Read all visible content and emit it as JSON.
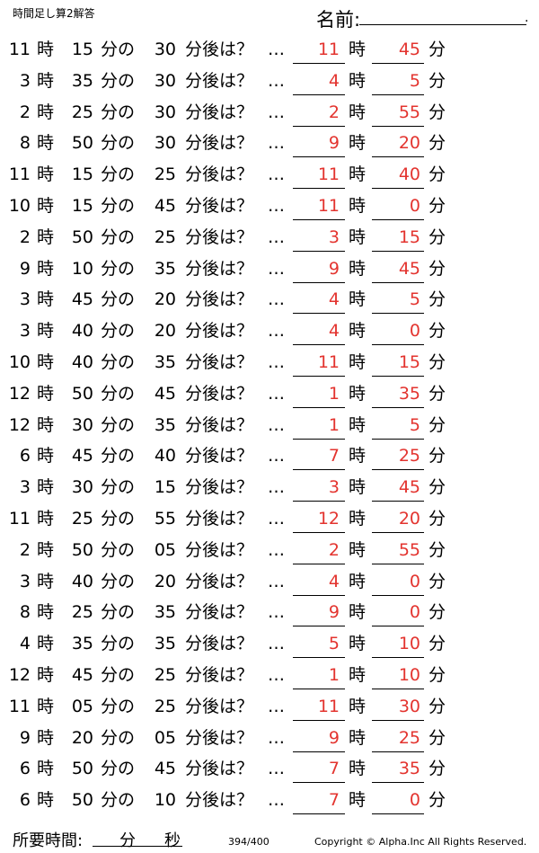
{
  "header": {
    "title": "時間足し算2解答",
    "name_label": "名前:",
    "name_dot": "."
  },
  "labels": {
    "hour": "時",
    "minute_of": "分の",
    "minutes_after": "分後は？",
    "dots": "…",
    "minute": "分"
  },
  "rows": [
    {
      "h": "11",
      "m": "15",
      "add": "30",
      "ah": "11",
      "am": "45"
    },
    {
      "h": "3",
      "m": "35",
      "add": "30",
      "ah": "4",
      "am": "5"
    },
    {
      "h": "2",
      "m": "25",
      "add": "30",
      "ah": "2",
      "am": "55"
    },
    {
      "h": "8",
      "m": "50",
      "add": "30",
      "ah": "9",
      "am": "20"
    },
    {
      "h": "11",
      "m": "15",
      "add": "25",
      "ah": "11",
      "am": "40"
    },
    {
      "h": "10",
      "m": "15",
      "add": "45",
      "ah": "11",
      "am": "0"
    },
    {
      "h": "2",
      "m": "50",
      "add": "25",
      "ah": "3",
      "am": "15"
    },
    {
      "h": "9",
      "m": "10",
      "add": "35",
      "ah": "9",
      "am": "45"
    },
    {
      "h": "3",
      "m": "45",
      "add": "20",
      "ah": "4",
      "am": "5"
    },
    {
      "h": "3",
      "m": "40",
      "add": "20",
      "ah": "4",
      "am": "0"
    },
    {
      "h": "10",
      "m": "40",
      "add": "35",
      "ah": "11",
      "am": "15"
    },
    {
      "h": "12",
      "m": "50",
      "add": "45",
      "ah": "1",
      "am": "35"
    },
    {
      "h": "12",
      "m": "30",
      "add": "35",
      "ah": "1",
      "am": "5"
    },
    {
      "h": "6",
      "m": "45",
      "add": "40",
      "ah": "7",
      "am": "25"
    },
    {
      "h": "3",
      "m": "30",
      "add": "15",
      "ah": "3",
      "am": "45"
    },
    {
      "h": "11",
      "m": "25",
      "add": "55",
      "ah": "12",
      "am": "20"
    },
    {
      "h": "2",
      "m": "50",
      "add": "05",
      "ah": "2",
      "am": "55"
    },
    {
      "h": "3",
      "m": "40",
      "add": "20",
      "ah": "4",
      "am": "0"
    },
    {
      "h": "8",
      "m": "25",
      "add": "35",
      "ah": "9",
      "am": "0"
    },
    {
      "h": "4",
      "m": "35",
      "add": "35",
      "ah": "5",
      "am": "10"
    },
    {
      "h": "12",
      "m": "45",
      "add": "25",
      "ah": "1",
      "am": "10"
    },
    {
      "h": "11",
      "m": "05",
      "add": "25",
      "ah": "11",
      "am": "30"
    },
    {
      "h": "9",
      "m": "20",
      "add": "05",
      "ah": "9",
      "am": "25"
    },
    {
      "h": "6",
      "m": "50",
      "add": "45",
      "ah": "7",
      "am": "35"
    },
    {
      "h": "6",
      "m": "50",
      "add": "10",
      "ah": "7",
      "am": "0"
    }
  ],
  "footer": {
    "time_label": "所要時間:",
    "min_label": "分",
    "sec_label": "秒",
    "page": "394/400",
    "copyright": "Copyright ©  Alpha.Inc All Rights Reserved."
  }
}
